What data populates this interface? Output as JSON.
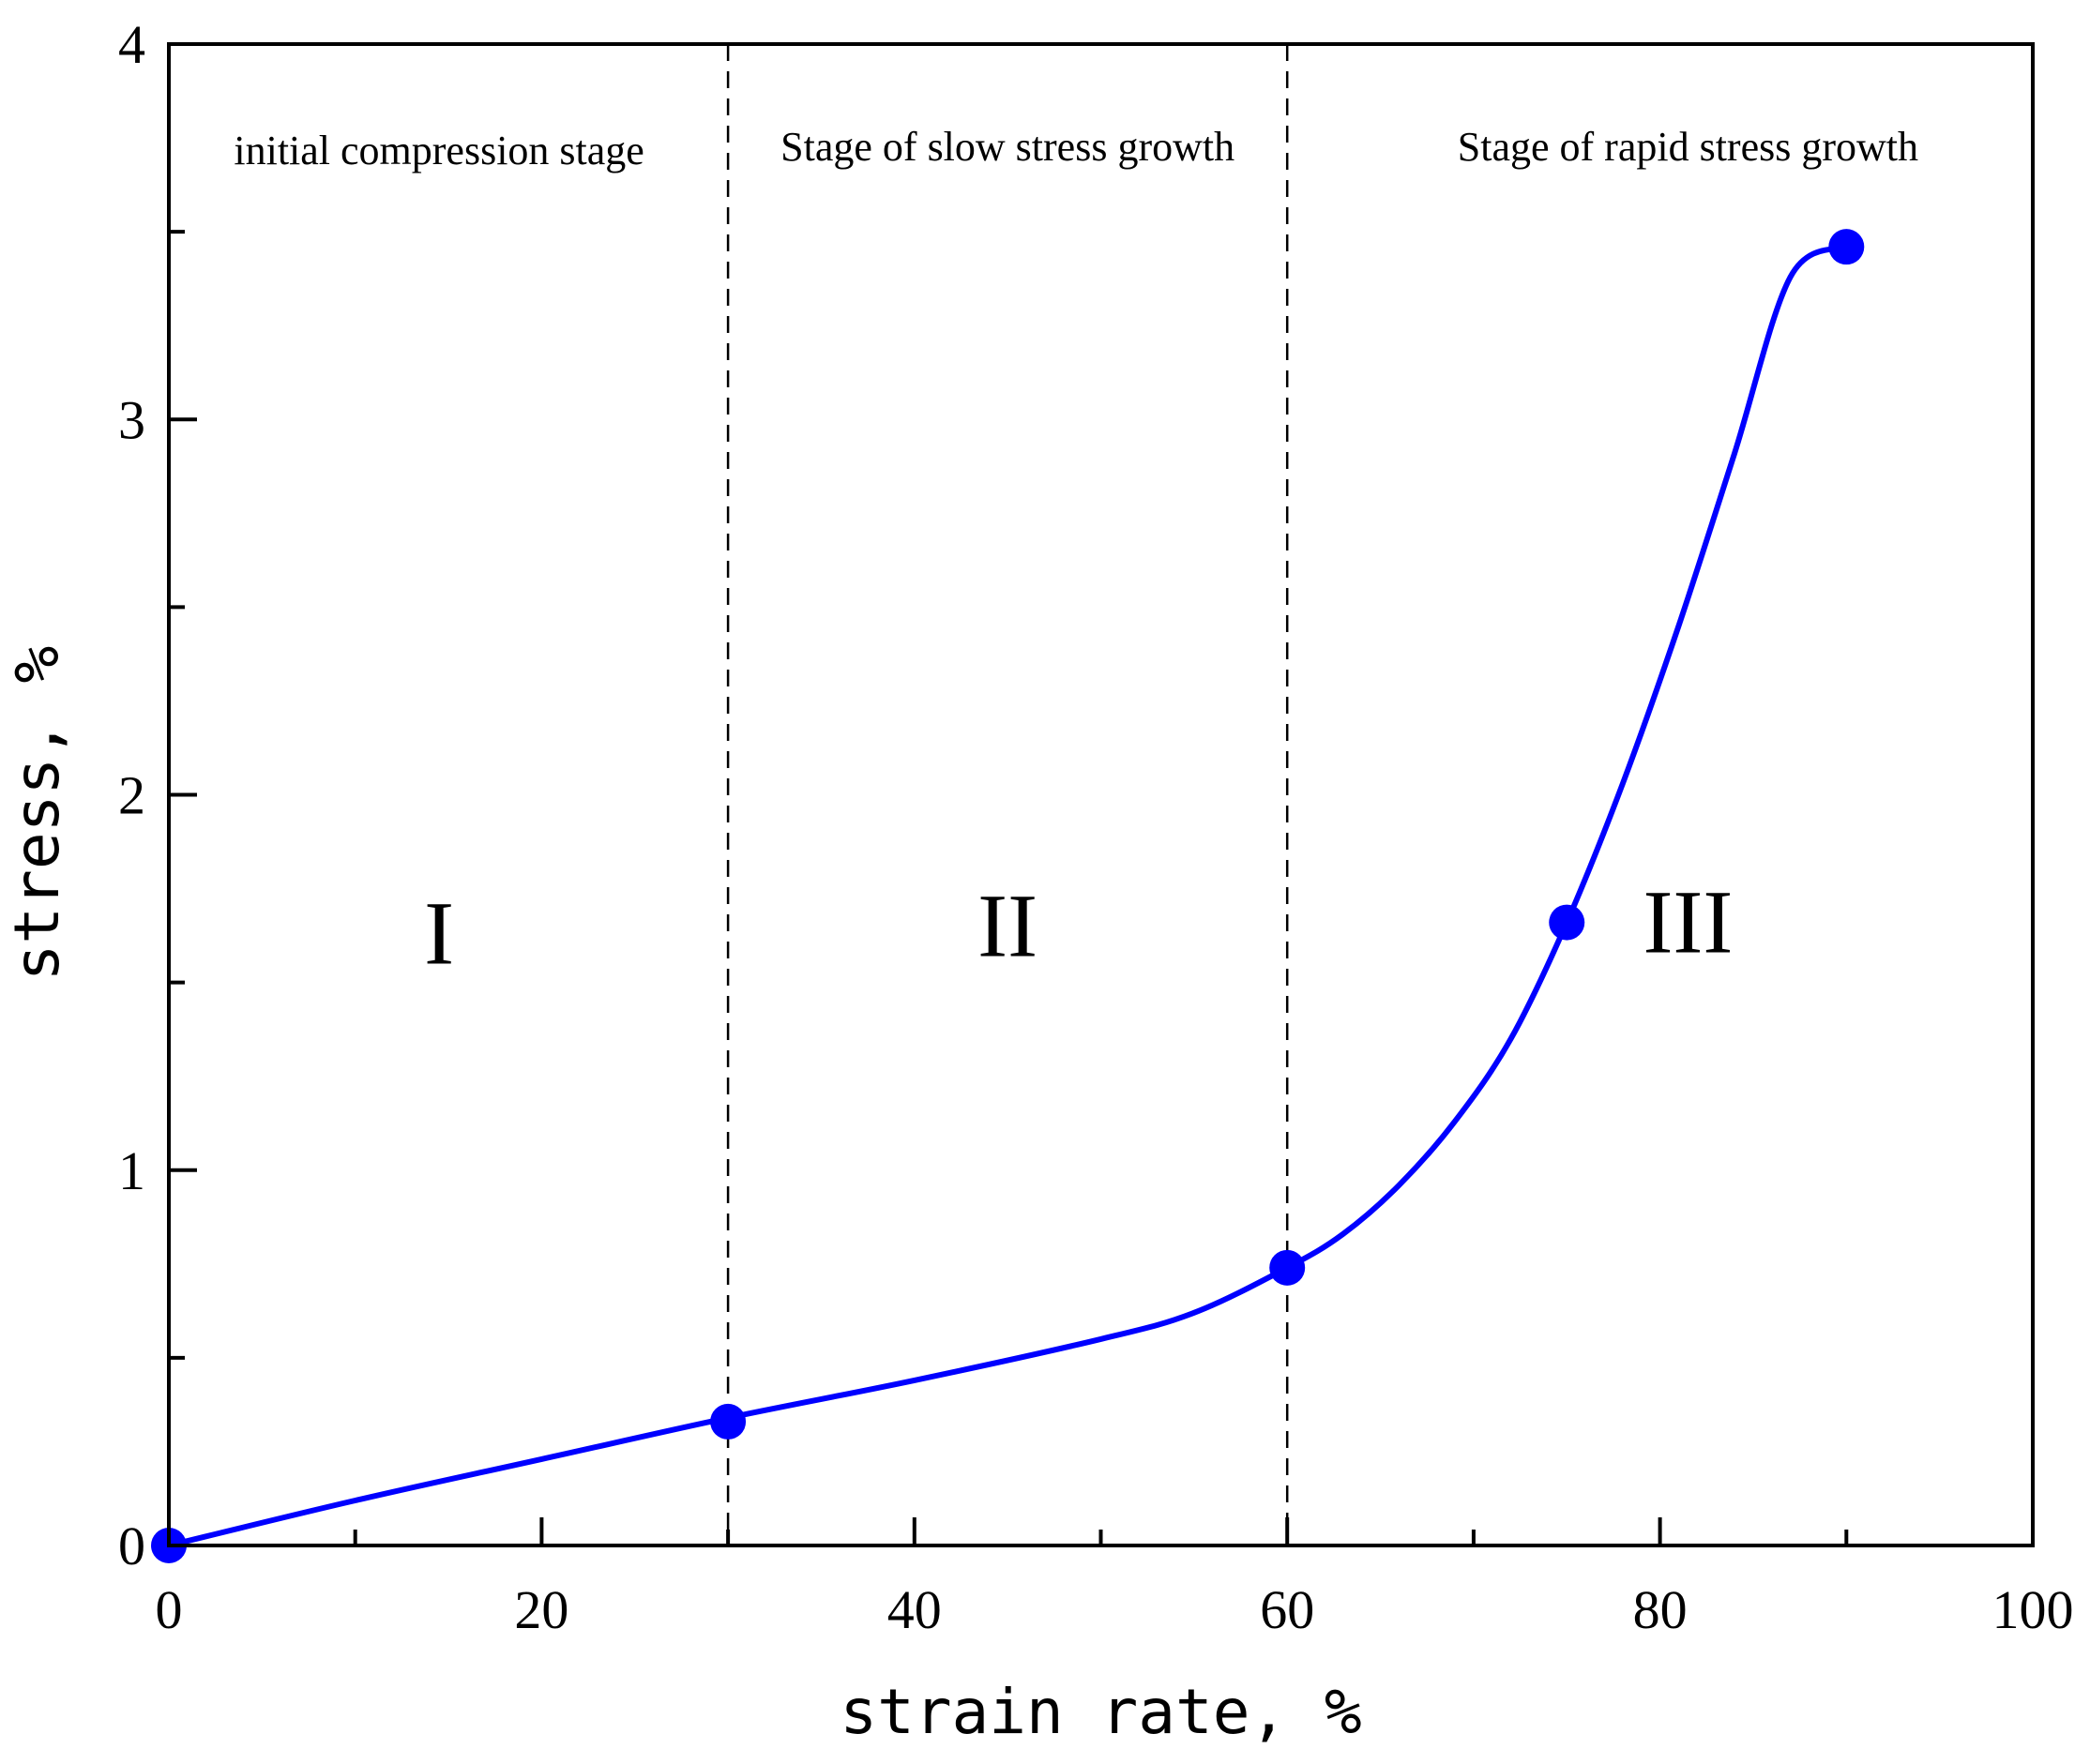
{
  "chart_data": {
    "type": "line",
    "xlabel": "strain rate, %",
    "ylabel": "stress, %",
    "xlim": [
      0,
      100
    ],
    "ylim": [
      0,
      4
    ],
    "x_ticks": [
      0,
      20,
      40,
      60,
      80,
      100
    ],
    "y_ticks": [
      0,
      1,
      2,
      3,
      4
    ],
    "x_ticks_minor": [
      10,
      30,
      50,
      70,
      90
    ],
    "y_ticks_minor": [
      0.5,
      1.5,
      2.5,
      3.5
    ],
    "grid": false,
    "series": [
      {
        "color": "#0000ff",
        "curve": [
          {
            "x": 0,
            "y": 0
          },
          {
            "x": 10,
            "y": 0.12
          },
          {
            "x": 20,
            "y": 0.23
          },
          {
            "x": 30,
            "y": 0.34
          },
          {
            "x": 40,
            "y": 0.44
          },
          {
            "x": 50,
            "y": 0.55
          },
          {
            "x": 55,
            "y": 0.62
          },
          {
            "x": 60,
            "y": 0.74
          },
          {
            "x": 63,
            "y": 0.83
          },
          {
            "x": 66,
            "y": 0.96
          },
          {
            "x": 69,
            "y": 1.13
          },
          {
            "x": 72,
            "y": 1.35
          },
          {
            "x": 75,
            "y": 1.66
          },
          {
            "x": 78,
            "y": 2.03
          },
          {
            "x": 81,
            "y": 2.45
          },
          {
            "x": 84,
            "y": 2.91
          },
          {
            "x": 87,
            "y": 3.38
          },
          {
            "x": 90,
            "y": 3.46
          }
        ],
        "markers": [
          {
            "x": 0,
            "y": 0
          },
          {
            "x": 30,
            "y": 0.33
          },
          {
            "x": 60,
            "y": 0.74
          },
          {
            "x": 75,
            "y": 1.66
          },
          {
            "x": 90,
            "y": 3.46
          }
        ]
      }
    ],
    "dividers": [
      30,
      60
    ],
    "regions": [
      {
        "title": "initial compression stage",
        "numeral": "I",
        "x": 14.5,
        "title_y": 3.68,
        "numeral_y": 1.55
      },
      {
        "title": "Stage of slow stress growth",
        "numeral": "II",
        "x": 45,
        "title_y": 3.69,
        "numeral_y": 1.57
      },
      {
        "title": "Stage of rapid stress growth",
        "numeral": "III",
        "x": 81.5,
        "title_y": 3.69,
        "numeral_y": 1.58
      }
    ]
  }
}
